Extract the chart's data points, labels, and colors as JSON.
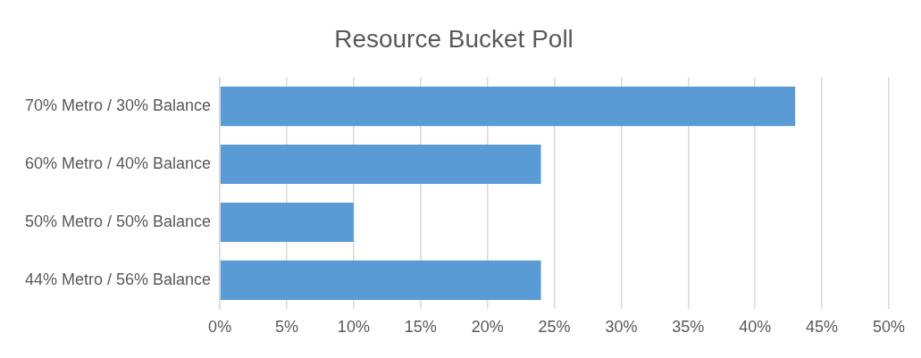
{
  "chart_data": {
    "type": "bar",
    "orientation": "horizontal",
    "title": "Resource Bucket Poll",
    "categories": [
      "70% Metro / 30% Balance",
      "60% Metro / 40% Balance",
      "50% Metro / 50% Balance",
      "44% Metro / 56% Balance"
    ],
    "values": [
      43,
      24,
      10,
      24
    ],
    "color": "#5b9bd5",
    "xlim": [
      0,
      50
    ],
    "xticks": [
      {
        "value": 0,
        "label": "0%"
      },
      {
        "value": 5,
        "label": "5%"
      },
      {
        "value": 10,
        "label": "10%"
      },
      {
        "value": 15,
        "label": "15%"
      },
      {
        "value": 20,
        "label": "20%"
      },
      {
        "value": 25,
        "label": "25%"
      },
      {
        "value": 30,
        "label": "30%"
      },
      {
        "value": 35,
        "label": "35%"
      },
      {
        "value": 40,
        "label": "40%"
      },
      {
        "value": 45,
        "label": "45%"
      },
      {
        "value": 50,
        "label": "50%"
      }
    ],
    "grid": "x",
    "legend": false
  }
}
